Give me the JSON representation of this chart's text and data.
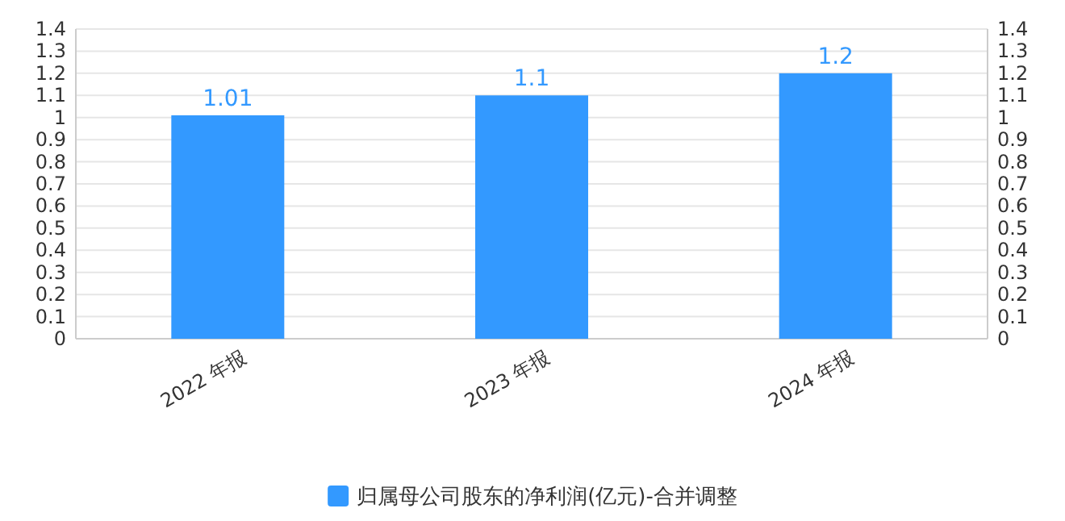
{
  "chart_data": {
    "type": "bar",
    "categories": [
      "2022 年报",
      "2023 年报",
      "2024 年报"
    ],
    "series": [
      {
        "name": "归属母公司股东的净利润(亿元)-合并调整",
        "color": "#3399ff",
        "values": [
          1.01,
          1.1,
          1.2
        ]
      }
    ],
    "ylim": [
      0,
      1.4
    ],
    "yticks": [
      0,
      0.1,
      0.2,
      0.3,
      0.4,
      0.5,
      0.6,
      0.7,
      0.8,
      0.9,
      1,
      1.1,
      1.2,
      1.3,
      1.4
    ],
    "y2lim": [
      0,
      1.4
    ],
    "y2ticks": [
      0,
      0.1,
      0.2,
      0.3,
      0.4,
      0.5,
      0.6,
      0.7,
      0.8,
      0.9,
      1,
      1.1,
      1.2,
      1.3,
      1.4
    ],
    "grid": "y",
    "legend": "bottom",
    "data_labels": true
  }
}
